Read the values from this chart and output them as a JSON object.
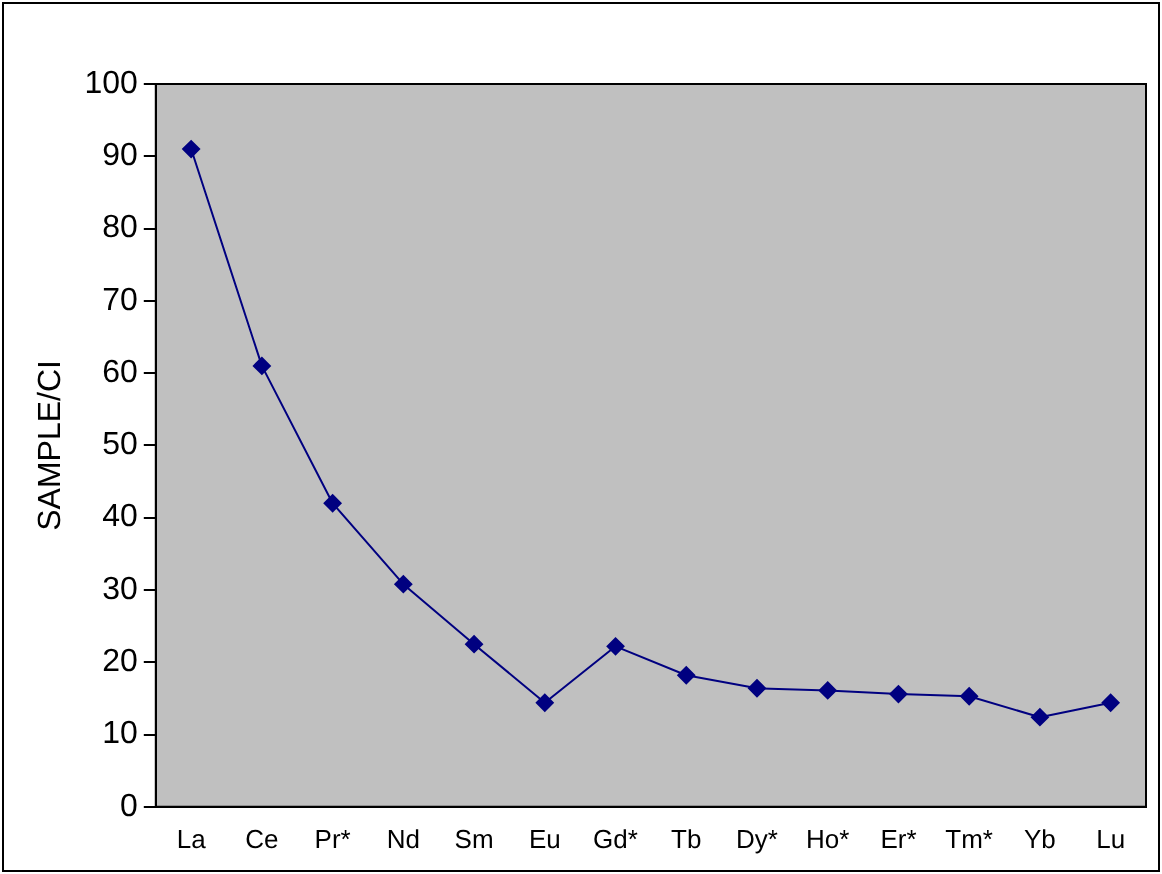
{
  "chart_data": {
    "type": "line",
    "ylabel": "SAMPLE/CI",
    "categories": [
      "La",
      "Ce",
      "Pr*",
      "Nd",
      "Sm",
      "Eu",
      "Gd*",
      "Tb",
      "Dy*",
      "Ho*",
      "Er*",
      "Tm*",
      "Yb",
      "Lu"
    ],
    "series": [
      {
        "color": "#000080",
        "values": [
          91,
          61,
          42,
          30.8,
          22.5,
          14.4,
          22.2,
          18.2,
          16.4,
          16.1,
          15.6,
          15.3,
          12.4,
          14.4
        ]
      }
    ],
    "ylim": [
      0,
      100
    ],
    "yticks": [
      0,
      10,
      20,
      30,
      40,
      50,
      60,
      70,
      80,
      90,
      100
    ],
    "grid": false,
    "legend": false,
    "marker": "diamond",
    "line_style": "solid"
  }
}
